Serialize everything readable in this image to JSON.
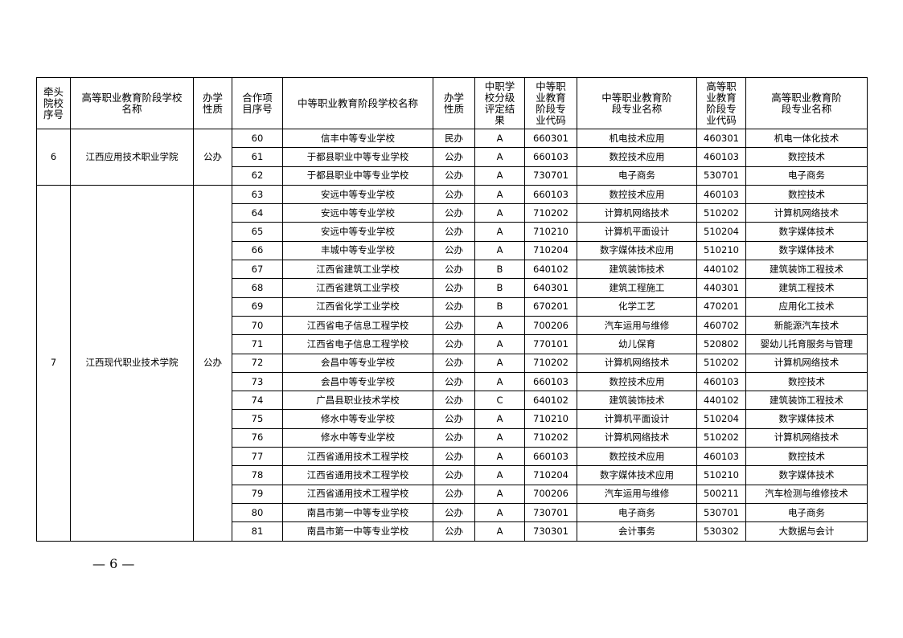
{
  "headers": [
    "牵头院校序号",
    "高等职业教育阶段学校名称",
    "办学性质",
    "合作项目序号",
    "中等职业教育阶段学校名称",
    "办学性质",
    "中职学校分级评定结果",
    "中等职业教育阶段专业代码",
    "中等职业教育阶段专业名称",
    "高等职业教育阶段专业代码",
    "高等职业教育阶段专业名称"
  ],
  "groups": [
    {
      "no": "6",
      "college": "江西应用技术职业学院",
      "nature": "公办",
      "rows": [
        [
          "60",
          "信丰中等专业学校",
          "民办",
          "A",
          "660301",
          "机电技术应用",
          "460301",
          "机电一体化技术"
        ],
        [
          "61",
          "于都县职业中等专业学校",
          "公办",
          "A",
          "660103",
          "数控技术应用",
          "460103",
          "数控技术"
        ],
        [
          "62",
          "于都县职业中等专业学校",
          "公办",
          "A",
          "730701",
          "电子商务",
          "530701",
          "电子商务"
        ]
      ]
    },
    {
      "no": "7",
      "college": "江西现代职业技术学院",
      "nature": "公办",
      "rows": [
        [
          "63",
          "安远中等专业学校",
          "公办",
          "A",
          "660103",
          "数控技术应用",
          "460103",
          "数控技术"
        ],
        [
          "64",
          "安远中等专业学校",
          "公办",
          "A",
          "710202",
          "计算机网络技术",
          "510202",
          "计算机网络技术"
        ],
        [
          "65",
          "安远中等专业学校",
          "公办",
          "A",
          "710210",
          "计算机平面设计",
          "510204",
          "数字媒体技术"
        ],
        [
          "66",
          "丰城中等专业学校",
          "公办",
          "A",
          "710204",
          "数字媒体技术应用",
          "510210",
          "数字媒体技术"
        ],
        [
          "67",
          "江西省建筑工业学校",
          "公办",
          "B",
          "640102",
          "建筑装饰技术",
          "440102",
          "建筑装饰工程技术"
        ],
        [
          "68",
          "江西省建筑工业学校",
          "公办",
          "B",
          "640301",
          "建筑工程施工",
          "440301",
          "建筑工程技术"
        ],
        [
          "69",
          "江西省化学工业学校",
          "公办",
          "B",
          "670201",
          "化学工艺",
          "470201",
          "应用化工技术"
        ],
        [
          "70",
          "江西省电子信息工程学校",
          "公办",
          "A",
          "700206",
          "汽车运用与维修",
          "460702",
          "新能源汽车技术"
        ],
        [
          "71",
          "江西省电子信息工程学校",
          "公办",
          "A",
          "770101",
          "幼儿保育",
          "520802",
          "婴幼儿托育服务与管理"
        ],
        [
          "72",
          "会昌中等专业学校",
          "公办",
          "A",
          "710202",
          "计算机网络技术",
          "510202",
          "计算机网络技术"
        ],
        [
          "73",
          "会昌中等专业学校",
          "公办",
          "A",
          "660103",
          "数控技术应用",
          "460103",
          "数控技术"
        ],
        [
          "74",
          "广昌县职业技术学校",
          "公办",
          "C",
          "640102",
          "建筑装饰技术",
          "440102",
          "建筑装饰工程技术"
        ],
        [
          "75",
          "修水中等专业学校",
          "公办",
          "A",
          "710210",
          "计算机平面设计",
          "510204",
          "数字媒体技术"
        ],
        [
          "76",
          "修水中等专业学校",
          "公办",
          "A",
          "710202",
          "计算机网络技术",
          "510202",
          "计算机网络技术"
        ],
        [
          "77",
          "江西省通用技术工程学校",
          "公办",
          "A",
          "660103",
          "数控技术应用",
          "460103",
          "数控技术"
        ],
        [
          "78",
          "江西省通用技术工程学校",
          "公办",
          "A",
          "710204",
          "数字媒体技术应用",
          "510210",
          "数字媒体技术"
        ],
        [
          "79",
          "江西省通用技术工程学校",
          "公办",
          "A",
          "700206",
          "汽车运用与维修",
          "500211",
          "汽车检测与维修技术"
        ],
        [
          "80",
          "南昌市第一中等专业学校",
          "公办",
          "A",
          "730701",
          "电子商务",
          "530701",
          "电子商务"
        ],
        [
          "81",
          "南昌市第一中等专业学校",
          "公办",
          "A",
          "730301",
          "会计事务",
          "530302",
          "大数据与会计"
        ]
      ]
    }
  ],
  "page_number": "— 6 —"
}
